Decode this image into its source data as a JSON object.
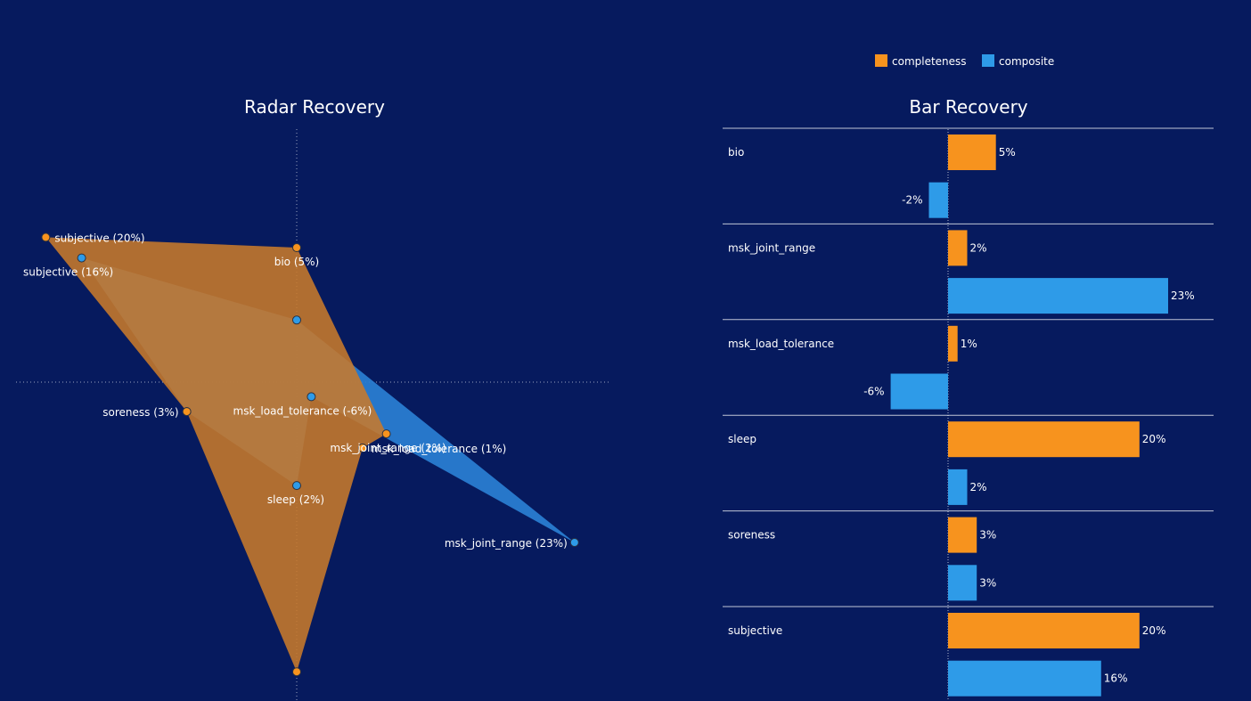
{
  "legend": {
    "completeness_label": "completeness",
    "composite_label": "composite"
  },
  "colors": {
    "background": "#061a5e",
    "completeness": "#f7931e",
    "composite": "#2e9be8",
    "radar_completeness_fill": "#c87a2b",
    "radar_composite_fill": "#2a7fd4"
  },
  "chart_data": [
    {
      "type": "radar",
      "title": "Radar Recovery",
      "axes": [
        "bio",
        "msk_joint_range",
        "msk_load_tolerance",
        "sleep",
        "soreness",
        "subjective"
      ],
      "series": [
        {
          "name": "completeness",
          "values": [
            5,
            2,
            1,
            20,
            3,
            20
          ],
          "labels": [
            "bio (5%)",
            "msk_joint_range (2%)",
            "msk_load_tolerance (1%)",
            "",
            "soreness (3%)",
            "subjective (20%)"
          ]
        },
        {
          "name": "composite",
          "values": [
            -2,
            23,
            -6,
            2,
            3,
            16
          ],
          "labels": [
            "",
            "msk_joint_range (23%)",
            "msk_load_tolerance (-6%)",
            "sleep (2%)",
            "",
            "subjective (16%)"
          ]
        }
      ]
    },
    {
      "type": "bar",
      "title": "Bar Recovery",
      "orientation": "horizontal",
      "categories": [
        "bio",
        "msk_joint_range",
        "msk_load_tolerance",
        "sleep",
        "soreness",
        "subjective"
      ],
      "series": [
        {
          "name": "completeness",
          "values": [
            5,
            2,
            1,
            20,
            3,
            20
          ],
          "labels": [
            "5%",
            "2%",
            "1%",
            "20%",
            "3%",
            "20%"
          ]
        },
        {
          "name": "composite",
          "values": [
            -2,
            23,
            -6,
            2,
            3,
            16
          ],
          "labels": [
            "-2%",
            "23%",
            "-6%",
            "2%",
            "3%",
            "16%"
          ]
        }
      ],
      "legend_position": "top-right"
    }
  ]
}
